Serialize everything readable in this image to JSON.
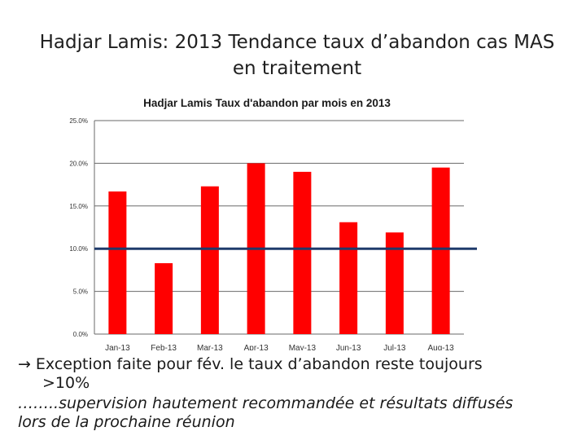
{
  "slide": {
    "title": "Hadjar Lamis: 2013 Tendance taux d’abandon cas MAS en traitement"
  },
  "note": {
    "arrow": "→",
    "line1": "Exception faite pour fév. le taux d’abandon reste toujours",
    "line2": ">10%",
    "line3": "……..supervision hautement recommandée et résultats diffusés",
    "line4": "lors de la prochaine réunion"
  },
  "chart_data": {
    "type": "bar",
    "title": "Hadjar Lamis Taux d'abandon par mois en 2013",
    "categories": [
      "Jan-13",
      "Feb-13",
      "Mar-13",
      "Apr-13",
      "May-13",
      "Jun-13",
      "Jul-13",
      "Aug-13"
    ],
    "values": [
      16.7,
      8.3,
      17.3,
      20.0,
      19.0,
      13.1,
      11.9,
      19.5
    ],
    "ylim": [
      0,
      25
    ],
    "yticks": [
      "0.0%",
      "5.0%",
      "10.0%",
      "15.0%",
      "20.0%",
      "25.0%"
    ],
    "ytick_values": [
      0,
      5,
      10,
      15,
      20,
      25
    ],
    "threshold": 10,
    "grid": true,
    "colors": {
      "bars": "#ff0000",
      "threshold": "#1f3a6b",
      "grid": "#6a6a6a"
    }
  }
}
